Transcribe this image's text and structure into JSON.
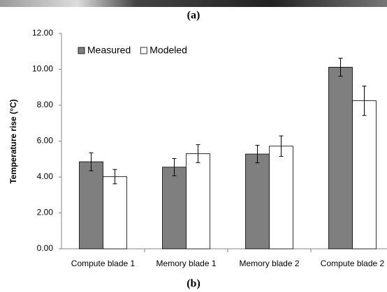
{
  "panel_a_label": "(a)",
  "panel_b_label": "(b)",
  "chart_data": {
    "type": "bar",
    "ylabel": "Temperature rise (°C)",
    "categories": [
      "Compute blade 1",
      "Memory blade 1",
      "Memory blade 2",
      "Compute blade 2"
    ],
    "series": [
      {
        "name": "Measured",
        "color": "#7f7f7f",
        "values": [
          4.85,
          4.55,
          5.28,
          10.12
        ],
        "errors": [
          0.5,
          0.48,
          0.49,
          0.5
        ]
      },
      {
        "name": "Modeled",
        "color": "#ffffff",
        "values": [
          4.02,
          5.3,
          5.72,
          8.25
        ],
        "errors": [
          0.4,
          0.5,
          0.57,
          0.82
        ]
      }
    ],
    "ylim": [
      0,
      12
    ],
    "yticks": [
      {
        "value": 0,
        "label": "0.00"
      },
      {
        "value": 2,
        "label": "2.00"
      },
      {
        "value": 4,
        "label": "4.00"
      },
      {
        "value": 6,
        "label": "6.00"
      },
      {
        "value": 8,
        "label": "8.00"
      },
      {
        "value": 10,
        "label": "10.00"
      },
      {
        "value": 12,
        "label": "12.00"
      }
    ],
    "legend": "top-left"
  }
}
